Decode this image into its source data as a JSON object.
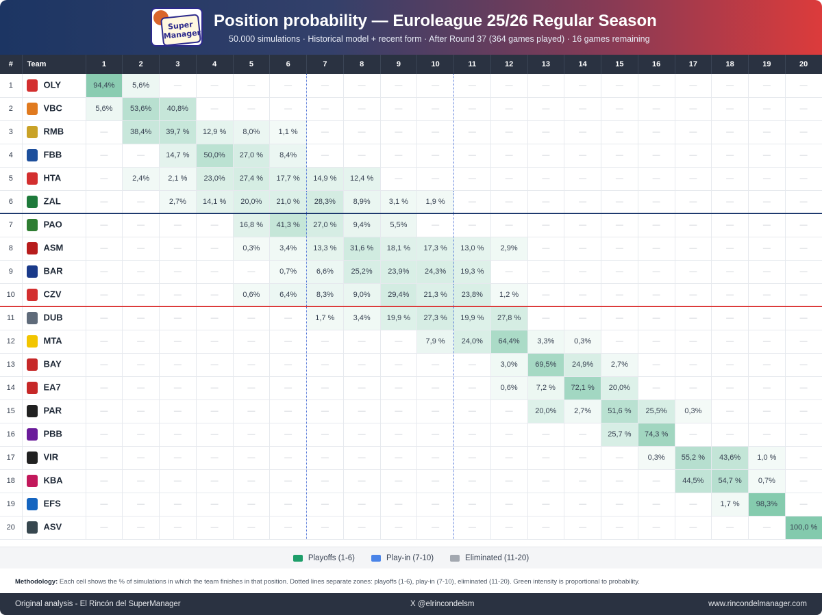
{
  "header": {
    "title": "Position probability — Euroleague 25/26 Regular Season",
    "subtitle": "50.000 simulations · Historical model + recent form · After Round 37 (364 games played) · 16 games remaining",
    "logo_text_top": "Super",
    "logo_text_bottom": "Manager"
  },
  "table": {
    "col_rank": "#",
    "col_team": "Team",
    "positions": [
      "1",
      "2",
      "3",
      "4",
      "5",
      "6",
      "7",
      "8",
      "9",
      "10",
      "11",
      "12",
      "13",
      "14",
      "15",
      "16",
      "17",
      "18",
      "19",
      "20"
    ],
    "empty_symbol": "—",
    "rows": [
      {
        "rank": "1",
        "team": "OLY",
        "crest_color": "#d32f2f",
        "cells": [
          "94,4%",
          "5,6%",
          "",
          "",
          "",
          "",
          "",
          "",
          "",
          "",
          "",
          "",
          "",
          "",
          "",
          "",
          "",
          "",
          "",
          ""
        ]
      },
      {
        "rank": "2",
        "team": "VBC",
        "crest_color": "#e07a1f",
        "cells": [
          "5,6%",
          "53,6%",
          "40,8%",
          "",
          "",
          "",
          "",
          "",
          "",
          "",
          "",
          "",
          "",
          "",
          "",
          "",
          "",
          "",
          "",
          ""
        ]
      },
      {
        "rank": "3",
        "team": "RMB",
        "crest_color": "#c9a227",
        "cells": [
          "",
          "38,4%",
          "39,7 %",
          "12,9 %",
          "8,0%",
          "1,1 %",
          "",
          "",
          "",
          "",
          "",
          "",
          "",
          "",
          "",
          "",
          "",
          "",
          "",
          ""
        ]
      },
      {
        "rank": "4",
        "team": "FBB",
        "crest_color": "#1d4f9c",
        "cells": [
          "",
          "",
          "14,7 %",
          "50,0%",
          "27,0 %",
          "8,4%",
          "",
          "",
          "",
          "",
          "",
          "",
          "",
          "",
          "",
          "",
          "",
          "",
          "",
          ""
        ]
      },
      {
        "rank": "5",
        "team": "HTA",
        "crest_color": "#d32f2f",
        "cells": [
          "",
          "2,4%",
          "2,1 %",
          "23,0%",
          "27,4 %",
          "17,7 %",
          "14,9 %",
          "12,4 %",
          "",
          "",
          "",
          "",
          "",
          "",
          "",
          "",
          "",
          "",
          "",
          ""
        ]
      },
      {
        "rank": "6",
        "team": "ZAL",
        "crest_color": "#1e7a3b",
        "cells": [
          "",
          "",
          "2,7%",
          "14,1 %",
          "20,0%",
          "21,0 %",
          "28,3%",
          "8,9%",
          "3,1 %",
          "1,9 %",
          "",
          "",
          "",
          "",
          "",
          "",
          "",
          "",
          "",
          ""
        ]
      },
      {
        "rank": "7",
        "team": "PAO",
        "crest_color": "#2e7d32",
        "cells": [
          "",
          "",
          "",
          "",
          "16,8 %",
          "41,3 %",
          "27,0 %",
          "9,4%",
          "5,5%",
          "",
          "",
          "",
          "",
          "",
          "",
          "",
          "",
          "",
          "",
          ""
        ]
      },
      {
        "rank": "8",
        "team": "ASM",
        "crest_color": "#b71c1c",
        "cells": [
          "",
          "",
          "",
          "",
          "0,3%",
          "3,4%",
          "13,3 %",
          "31,6 %",
          "18,1 %",
          "17,3 %",
          "13,0 %",
          "2,9%",
          "",
          "",
          "",
          "",
          "",
          "",
          "",
          ""
        ]
      },
      {
        "rank": "9",
        "team": "BAR",
        "crest_color": "#1a3a8a",
        "cells": [
          "",
          "",
          "",
          "",
          "",
          "0,7%",
          "6,6%",
          "25,2%",
          "23,9%",
          "24,3%",
          "19,3 %",
          "",
          "",
          "",
          "",
          "",
          "",
          "",
          "",
          ""
        ]
      },
      {
        "rank": "10",
        "team": "CZV",
        "crest_color": "#d32f2f",
        "cells": [
          "",
          "",
          "",
          "",
          "0,6%",
          "6,4%",
          "8,3%",
          "9,0%",
          "29,4%",
          "21,3 %",
          "23,8%",
          "1,2 %",
          "",
          "",
          "",
          "",
          "",
          "",
          "",
          ""
        ]
      },
      {
        "rank": "11",
        "team": "DUB",
        "crest_color": "#5f6b7a",
        "cells": [
          "",
          "",
          "",
          "",
          "",
          "",
          "1,7 %",
          "3,4%",
          "19,9 %",
          "27,3 %",
          "19,9 %",
          "27,8 %",
          "",
          "",
          "",
          "",
          "",
          "",
          "",
          ""
        ]
      },
      {
        "rank": "12",
        "team": "MTA",
        "crest_color": "#f2c500",
        "cells": [
          "",
          "",
          "",
          "",
          "",
          "",
          "",
          "",
          "",
          "7,9 %",
          "24,0%",
          "64,4%",
          "3,3%",
          "0,3%",
          "",
          "",
          "",
          "",
          "",
          ""
        ]
      },
      {
        "rank": "13",
        "team": "BAY",
        "crest_color": "#c62828",
        "cells": [
          "",
          "",
          "",
          "",
          "",
          "",
          "",
          "",
          "",
          "",
          "",
          "3,0%",
          "69,5%",
          "24,9%",
          "2,7%",
          "",
          "",
          "",
          "",
          ""
        ]
      },
      {
        "rank": "14",
        "team": "EA7",
        "crest_color": "#c62828",
        "cells": [
          "",
          "",
          "",
          "",
          "",
          "",
          "",
          "",
          "",
          "",
          "",
          "0,6%",
          "7,2 %",
          "72,1 %",
          "20,0%",
          "",
          "",
          "",
          "",
          ""
        ]
      },
      {
        "rank": "15",
        "team": "PAR",
        "crest_color": "#212121",
        "cells": [
          "",
          "",
          "",
          "",
          "",
          "",
          "",
          "",
          "",
          "",
          "",
          "",
          "20,0%",
          "2,7%",
          "51,6 %",
          "25,5%",
          "0,3%",
          "",
          "",
          ""
        ]
      },
      {
        "rank": "16",
        "team": "PBB",
        "crest_color": "#6a1b9a",
        "cells": [
          "",
          "",
          "",
          "",
          "",
          "",
          "",
          "",
          "",
          "",
          "",
          "",
          "",
          "",
          "25,7 %",
          "74,3 %",
          "",
          "",
          "",
          ""
        ]
      },
      {
        "rank": "17",
        "team": "VIR",
        "crest_color": "#212121",
        "cells": [
          "",
          "",
          "",
          "",
          "",
          "",
          "",
          "",
          "",
          "",
          "",
          "",
          "",
          "",
          "",
          "0,3%",
          "55,2 %",
          "43,6%",
          "1,0 %",
          ""
        ]
      },
      {
        "rank": "18",
        "team": "KBA",
        "crest_color": "#c2185b",
        "cells": [
          "",
          "",
          "",
          "",
          "",
          "",
          "",
          "",
          "",
          "",
          "",
          "",
          "",
          "",
          "",
          "",
          "44,5%",
          "54,7 %",
          "0,7%",
          ""
        ]
      },
      {
        "rank": "19",
        "team": "EFS",
        "crest_color": "#1565c0",
        "cells": [
          "",
          "",
          "",
          "",
          "",
          "",
          "",
          "",
          "",
          "",
          "",
          "",
          "",
          "",
          "",
          "",
          "",
          "1,7 %",
          "98,3%",
          ""
        ]
      },
      {
        "rank": "20",
        "team": "ASV",
        "crest_color": "#37474f",
        "cells": [
          "",
          "",
          "",
          "",
          "",
          "",
          "",
          "",
          "",
          "",
          "",
          "",
          "",
          "",
          "",
          "",
          "",
          "",
          "",
          "100,0 %"
        ]
      }
    ]
  },
  "legend": {
    "items": [
      {
        "label": "Playoffs (1-6)",
        "color": "#1e9e6a"
      },
      {
        "label": "Play-in (7-10)",
        "color": "#4a84e8"
      },
      {
        "label": "Eliminated (11-20)",
        "color": "#a3a8b0"
      }
    ]
  },
  "methodology": {
    "label": "Methodology:",
    "text": "Each cell shows the % of simulations in which the team finishes in that position. Dotted lines separate zones: playoffs (1-6), play-in (7-10), eliminated (11-20). Green intensity is proportional to probability."
  },
  "footer": {
    "left": "Original analysis - El Rincón del SuperManager",
    "center": "X @elrincondelsm",
    "right": "www.rincondelmanager.com"
  },
  "colors": {
    "header_start": "#1c3563",
    "header_end": "#dc3b3b",
    "cell_green": "#1e9e6a",
    "zone_separator_blue": "#1e3a6e",
    "zone_separator_red": "#dc3b3b"
  }
}
